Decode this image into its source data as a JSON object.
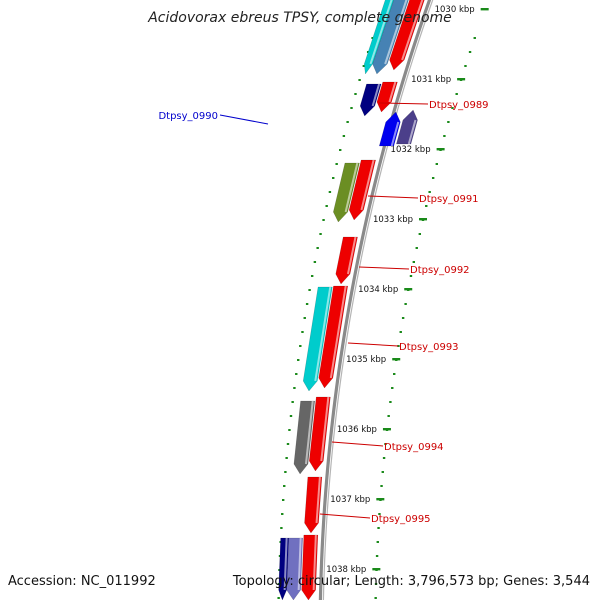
{
  "title": "Acidovorax ebreus TPSY, complete genome",
  "accession": "Accession: NC_011992",
  "summary": "Topology: circular; Length: 3,796,573 bp; Genes: 3,544",
  "colors": {
    "backbone": "#8a8a8a",
    "tick": "#1a8a1a",
    "label_fwd": "#cc0000",
    "label_rev": "#0000cc"
  },
  "ticks": [
    "1030 kbp",
    "1031 kbp",
    "1032 kbp",
    "1033 kbp",
    "1034 kbp",
    "1035 kbp",
    "1036 kbp",
    "1037 kbp",
    "1038 kbp"
  ],
  "gene_labels": [
    {
      "text": "Dtpsy_0989",
      "strand": "fwd"
    },
    {
      "text": "Dtpsy_0990",
      "strand": "rev"
    },
    {
      "text": "Dtpsy_0991",
      "strand": "fwd"
    },
    {
      "text": "Dtpsy_0992",
      "strand": "fwd"
    },
    {
      "text": "Dtpsy_0993",
      "strand": "fwd"
    },
    {
      "text": "Dtpsy_0994",
      "strand": "fwd"
    },
    {
      "text": "Dtpsy_0995",
      "strand": "fwd"
    }
  ],
  "genes": [
    {
      "track": "outer",
      "color": "#ee0000",
      "dir": "down"
    },
    {
      "track": "outer2",
      "color": "#4682b4",
      "dir": "down"
    },
    {
      "track": "outer3",
      "color": "#00cccc",
      "dir": "down"
    },
    {
      "track": "outer",
      "color": "#ee0000",
      "dir": "down"
    },
    {
      "track": "outer2",
      "color": "#000080",
      "dir": "down"
    },
    {
      "track": "rev",
      "color": "#4b3f8a",
      "dir": "up"
    },
    {
      "track": "rev2",
      "color": "#0000ee",
      "dir": "up"
    },
    {
      "track": "outer",
      "color": "#ee0000",
      "dir": "down"
    },
    {
      "track": "outer2",
      "color": "#6b8e23",
      "dir": "down"
    },
    {
      "track": "outer",
      "color": "#ee0000",
      "dir": "down"
    },
    {
      "track": "outer",
      "color": "#ee0000",
      "dir": "down"
    },
    {
      "track": "outer2",
      "color": "#00cccc",
      "dir": "down"
    },
    {
      "track": "outer",
      "color": "#ee0000",
      "dir": "down"
    },
    {
      "track": "outer2",
      "color": "#666666",
      "dir": "down"
    },
    {
      "track": "outer",
      "color": "#ee0000",
      "dir": "down"
    },
    {
      "track": "outer",
      "color": "#ee0000",
      "dir": "down"
    },
    {
      "track": "outer2",
      "color": "#7070c0",
      "dir": "down"
    },
    {
      "track": "outer3",
      "color": "#000080",
      "dir": "down"
    }
  ]
}
